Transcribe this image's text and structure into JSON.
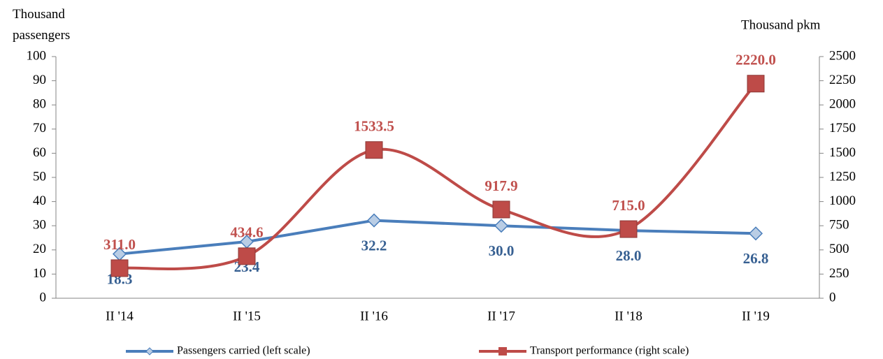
{
  "chart_data": {
    "type": "line",
    "y_label": "Thousand passengers",
    "y2_label": "Thousand pkm",
    "categories": [
      "II '14",
      "II '15",
      "II '16",
      "II '17",
      "II '18",
      "II '19"
    ],
    "series": [
      {
        "name": "Passengers carried (left scale)",
        "color": "#4a7ebb",
        "marker_fill": "#b9cde5",
        "values": [
          18.3,
          23.4,
          32.2,
          30.0,
          28.0,
          26.8
        ],
        "value_labels": [
          "18.3",
          "23.4",
          "32.2",
          "30.0",
          "28.0",
          "26.8"
        ],
        "label_color": "#376092"
      },
      {
        "name": "Transport performance (right scale)",
        "color": "#be4b48",
        "axis": "y2",
        "smooth": true,
        "values": [
          311.0,
          434.6,
          1533.5,
          917.9,
          715.0,
          2220.0
        ],
        "value_labels": [
          "311.0",
          "434.6",
          "1533.5",
          "917.9",
          "715.0",
          "2220.0"
        ],
        "label_color": "#c0504d"
      }
    ],
    "ylim": [
      0,
      100
    ],
    "yticks": [
      0,
      10,
      20,
      30,
      40,
      50,
      60,
      70,
      80,
      90,
      100
    ],
    "y2lim": [
      0,
      2500
    ],
    "y2ticks": [
      0,
      250,
      500,
      750,
      1000,
      1250,
      1500,
      1750,
      2000,
      2250,
      2500
    ]
  }
}
